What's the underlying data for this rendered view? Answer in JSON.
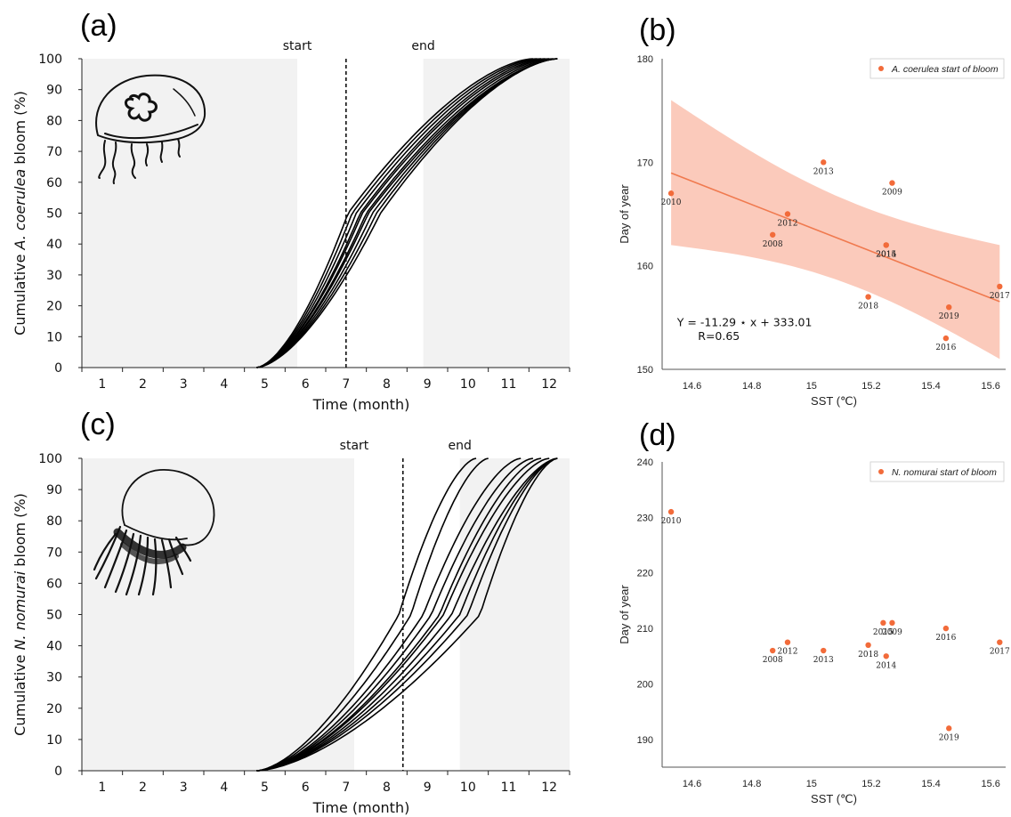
{
  "panels": [
    {
      "id": "a",
      "label": "(a)",
      "chart_data": {
        "type": "line",
        "ylabel_parts": [
          "Cumulative ",
          "A. coerulea",
          " bloom (%)"
        ],
        "xlabel": "Time (month)",
        "xticks": [
          "1",
          "2",
          "3",
          "4",
          "5",
          "6",
          "7",
          "8",
          "9",
          "10",
          "11",
          "12"
        ],
        "yticks": [
          "0",
          "10",
          "20",
          "30",
          "40",
          "50",
          "60",
          "70",
          "80",
          "90",
          "100"
        ],
        "xlim": [
          0.5,
          12.5
        ],
        "ylim": [
          0,
          100
        ],
        "shaded_periods": [
          [
            0.5,
            5.8
          ],
          [
            8.9,
            12.5
          ]
        ],
        "start_label": "start",
        "end_label": "end",
        "start_month": 5.8,
        "end_month": 8.9,
        "vline_month": 7.0,
        "series": [
          {
            "start": 4.8,
            "end": 11.6,
            "midpoint": 7.05
          },
          {
            "start": 4.8,
            "end": 11.7,
            "midpoint": 7.15
          },
          {
            "start": 4.8,
            "end": 11.8,
            "midpoint": 7.25
          },
          {
            "start": 4.8,
            "end": 11.9,
            "midpoint": 7.35
          },
          {
            "start": 4.8,
            "end": 12.0,
            "midpoint": 7.4
          },
          {
            "start": 4.8,
            "end": 12.1,
            "midpoint": 7.5
          },
          {
            "start": 4.8,
            "end": 12.2,
            "midpoint": 7.55
          },
          {
            "start": 4.8,
            "end": 12.2,
            "midpoint": 7.65
          },
          {
            "start": 4.8,
            "end": 12.2,
            "midpoint": 7.75
          },
          {
            "start": 4.8,
            "end": 12.2,
            "midpoint": 7.85
          }
        ]
      }
    },
    {
      "id": "b",
      "label": "(b)",
      "chart_data": {
        "type": "scatter",
        "xlabel": "SST (℃)",
        "ylabel": "Day of year",
        "xlim": [
          14.5,
          15.65
        ],
        "ylim": [
          150,
          180
        ],
        "xticks": [
          "14.6",
          "14.8",
          "15",
          "15.2",
          "15.4",
          "15.6"
        ],
        "yticks": [
          "150",
          "160",
          "170",
          "180"
        ],
        "legend": "A. coerulea start of bloom",
        "points": [
          {
            "label": "2010",
            "x": 14.53,
            "y": 167
          },
          {
            "label": "2008",
            "x": 14.87,
            "y": 163
          },
          {
            "label": "2012",
            "x": 14.92,
            "y": 165
          },
          {
            "label": "2013",
            "x": 15.04,
            "y": 170
          },
          {
            "label": "2018",
            "x": 15.19,
            "y": 157
          },
          {
            "label": "2014",
            "x": 15.25,
            "y": 162
          },
          {
            "label": "2015",
            "x": 15.25,
            "y": 162
          },
          {
            "label": "2009",
            "x": 15.27,
            "y": 168
          },
          {
            "label": "2016",
            "x": 15.45,
            "y": 153
          },
          {
            "label": "2019",
            "x": 15.46,
            "y": 156
          },
          {
            "label": "2017",
            "x": 15.63,
            "y": 158
          }
        ],
        "fit": {
          "slope": -11.29,
          "intercept": 333.01
        },
        "band_x": [
          14.53,
          15.63
        ],
        "band_upper": [
          176,
          162
        ],
        "band_lower": [
          162,
          151
        ],
        "equation": "Y = -11.29 ⋆ x + 333.01",
        "r_text": "R=0.65"
      }
    },
    {
      "id": "c",
      "label": "(c)",
      "chart_data": {
        "type": "line",
        "ylabel_parts": [
          "Cumulative ",
          "N. nomurai",
          " bloom (%)"
        ],
        "xlabel": "Time (month)",
        "xticks": [
          "1",
          "2",
          "3",
          "4",
          "5",
          "6",
          "7",
          "8",
          "9",
          "10",
          "11",
          "12"
        ],
        "yticks": [
          "0",
          "10",
          "20",
          "30",
          "40",
          "50",
          "60",
          "70",
          "80",
          "90",
          "100"
        ],
        "xlim": [
          0.5,
          12.5
        ],
        "ylim": [
          0,
          100
        ],
        "shaded_periods": [
          [
            0.5,
            7.2
          ],
          [
            9.8,
            12.5
          ]
        ],
        "start_label": "start",
        "end_label": "end",
        "start_month": 7.2,
        "end_month": 9.8,
        "vline_month": 8.4,
        "series": [
          {
            "start": 4.8,
            "end": 10.2,
            "midpoint": 8.3
          },
          {
            "start": 4.8,
            "end": 10.5,
            "midpoint": 8.6
          },
          {
            "start": 4.8,
            "end": 11.3,
            "midpoint": 8.9
          },
          {
            "start": 4.8,
            "end": 11.6,
            "midpoint": 9.1
          },
          {
            "start": 4.8,
            "end": 11.8,
            "midpoint": 9.3
          },
          {
            "start": 4.8,
            "end": 12.0,
            "midpoint": 9.4
          },
          {
            "start": 4.8,
            "end": 12.2,
            "midpoint": 9.6
          },
          {
            "start": 4.8,
            "end": 12.2,
            "midpoint": 9.8
          },
          {
            "start": 4.8,
            "end": 12.2,
            "midpoint": 10.0
          },
          {
            "start": 4.8,
            "end": 12.2,
            "midpoint": 10.3
          }
        ]
      }
    },
    {
      "id": "d",
      "label": "(d)",
      "chart_data": {
        "type": "scatter",
        "xlabel": "SST (℃)",
        "ylabel": "Day of year",
        "xlim": [
          14.5,
          15.65
        ],
        "ylim": [
          185,
          240
        ],
        "xticks": [
          "14.6",
          "14.8",
          "15",
          "15.2",
          "15.4",
          "15.6"
        ],
        "yticks": [
          "190",
          "200",
          "210",
          "220",
          "230",
          "240"
        ],
        "legend": "N. nomurai start of bloom",
        "points": [
          {
            "label": "2010",
            "x": 14.53,
            "y": 231
          },
          {
            "label": "2008",
            "x": 14.87,
            "y": 206
          },
          {
            "label": "2012",
            "x": 14.92,
            "y": 207.5
          },
          {
            "label": "2013",
            "x": 15.04,
            "y": 206
          },
          {
            "label": "2018",
            "x": 15.19,
            "y": 207
          },
          {
            "label": "2014",
            "x": 15.25,
            "y": 205
          },
          {
            "label": "2015",
            "x": 15.24,
            "y": 211
          },
          {
            "label": "2009",
            "x": 15.27,
            "y": 211
          },
          {
            "label": "2016",
            "x": 15.45,
            "y": 210
          },
          {
            "label": "2019",
            "x": 15.46,
            "y": 192
          },
          {
            "label": "2017",
            "x": 15.63,
            "y": 207.5
          }
        ]
      }
    }
  ],
  "colors": {
    "shade": "#f2f2f2",
    "point": "#f26b3a",
    "band": "#f9b8a4",
    "fit_line": "#f07a4f",
    "curve": "#000000"
  },
  "icons": [
    "moon-jellyfish-icon",
    "nomura-jellyfish-icon"
  ]
}
